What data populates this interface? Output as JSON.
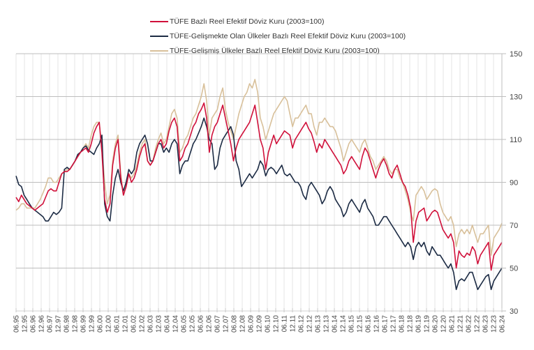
{
  "chart_data": {
    "type": "line",
    "title": "",
    "xlabel": "",
    "ylabel": "",
    "ylim": [
      30,
      150
    ],
    "yticks": [
      30,
      50,
      70,
      90,
      110,
      130,
      150
    ],
    "y_axis_side": "right",
    "grid": "on",
    "legend_placement": "top-center",
    "x_tick_labels": [
      "06.95",
      "12.95",
      "06.96",
      "12.96",
      "06.97",
      "12.97",
      "06.98",
      "12.98",
      "06.99",
      "12.99",
      "06.00",
      "12.00",
      "06.01",
      "12.01",
      "06.02",
      "12.02",
      "06.03",
      "12.03",
      "06.04",
      "12.04",
      "06.05",
      "12.05",
      "06.06",
      "12.06",
      "06.07",
      "12.07",
      "06.08",
      "12.08",
      "06.09",
      "12.09",
      "06.10",
      "12.10",
      "06.11",
      "12.11",
      "06.12",
      "12.12",
      "06.13",
      "12.13",
      "06.14",
      "12.14",
      "06.15",
      "12.15",
      "06.16",
      "12.16",
      "06.17",
      "12.17",
      "06.18",
      "12.18",
      "06.19",
      "12.19",
      "06.20",
      "12.20",
      "06.21",
      "12.21",
      "06.22",
      "12.22",
      "06.23",
      "12.23",
      "06.24"
    ],
    "series": [
      {
        "name": "TÜFE  Bazlı Reel Efektif Döviz Kuru (2003=100)",
        "color": "#D0103A",
        "values": [
          83,
          81,
          84,
          82,
          80,
          79,
          78,
          77,
          78,
          79,
          80,
          83,
          86,
          87,
          86,
          86,
          90,
          94,
          95,
          95,
          96,
          98,
          100,
          102,
          104,
          105,
          106,
          104,
          108,
          113,
          116,
          118,
          104,
          82,
          76,
          80,
          98,
          106,
          110,
          92,
          84,
          88,
          94,
          90,
          92,
          96,
          102,
          106,
          108,
          100,
          98,
          100,
          104,
          108,
          110,
          106,
          108,
          114,
          118,
          120,
          116,
          100,
          102,
          106,
          108,
          112,
          116,
          118,
          122,
          124,
          127,
          120,
          104,
          112,
          116,
          118,
          122,
          126,
          120,
          114,
          108,
          100,
          106,
          110,
          112,
          114,
          116,
          118,
          122,
          126,
          118,
          110,
          106,
          96,
          104,
          108,
          112,
          108,
          110,
          112,
          114,
          113,
          112,
          106,
          110,
          112,
          114,
          116,
          118,
          115,
          113,
          109,
          104,
          108,
          106,
          110,
          108,
          106,
          104,
          102,
          100,
          98,
          94,
          96,
          100,
          102,
          100,
          98,
          96,
          102,
          106,
          104,
          100,
          96,
          92,
          96,
          99,
          101,
          98,
          94,
          92,
          96,
          98,
          94,
          90,
          88,
          84,
          78,
          62,
          72,
          76,
          77,
          78,
          72,
          74,
          76,
          77,
          76,
          72,
          68,
          66,
          64,
          66,
          62,
          50,
          58,
          56,
          55,
          57,
          56,
          60,
          58,
          52,
          56,
          58,
          60,
          62,
          49,
          56,
          58,
          60,
          62
        ]
      },
      {
        "name": "TÜFE-Gelişmekte Olan Ülkeler Bazlı Reel Efektif Döviz Kuru (2003=100)",
        "color": "#1C2B44",
        "values": [
          93,
          89,
          88,
          84,
          82,
          80,
          78,
          77,
          76,
          75,
          74,
          72,
          72,
          74,
          76,
          75,
          76,
          78,
          96,
          97,
          96,
          98,
          100,
          103,
          104,
          106,
          107,
          105,
          104,
          103,
          106,
          108,
          112,
          80,
          74,
          72,
          84,
          92,
          96,
          90,
          86,
          90,
          96,
          94,
          96,
          104,
          108,
          110,
          112,
          108,
          100,
          100,
          104,
          108,
          108,
          104,
          106,
          104,
          108,
          110,
          108,
          94,
          98,
          100,
          100,
          104,
          108,
          110,
          113,
          116,
          120,
          116,
          110,
          108,
          96,
          98,
          106,
          110,
          112,
          114,
          116,
          112,
          100,
          96,
          88,
          90,
          92,
          94,
          92,
          94,
          96,
          100,
          98,
          93,
          96,
          97,
          96,
          94,
          96,
          98,
          94,
          93,
          94,
          92,
          90,
          90,
          88,
          84,
          82,
          88,
          90,
          88,
          86,
          84,
          80,
          82,
          86,
          88,
          86,
          82,
          80,
          78,
          74,
          76,
          80,
          82,
          80,
          78,
          76,
          80,
          82,
          78,
          76,
          74,
          70,
          70,
          72,
          74,
          74,
          72,
          70,
          68,
          66,
          64,
          62,
          60,
          62,
          60,
          54,
          60,
          62,
          60,
          62,
          58,
          56,
          60,
          58,
          56,
          56,
          54,
          52,
          50,
          52,
          48,
          40,
          44,
          45,
          44,
          46,
          48,
          48,
          44,
          40,
          42,
          44,
          46,
          47,
          40,
          44,
          46,
          48,
          50
        ]
      },
      {
        "name": "TÜFE-Gelişmiş Ülkeler Bazlı Reel Efektif Döviz Kuru (2003=100)",
        "color": "#D8C09A",
        "values": [
          77,
          78,
          80,
          80,
          78,
          78,
          78,
          78,
          80,
          82,
          85,
          88,
          92,
          92,
          90,
          90,
          92,
          94,
          95,
          96,
          96,
          98,
          100,
          102,
          104,
          106,
          108,
          106,
          112,
          116,
          118,
          118,
          106,
          90,
          80,
          84,
          100,
          108,
          112,
          94,
          84,
          88,
          94,
          92,
          94,
          98,
          104,
          108,
          110,
          100,
          98,
          100,
          106,
          110,
          113,
          108,
          110,
          116,
          122,
          124,
          120,
          104,
          106,
          110,
          112,
          116,
          120,
          122,
          126,
          130,
          136,
          128,
          112,
          120,
          122,
          124,
          130,
          134,
          124,
          118,
          114,
          110,
          116,
          122,
          126,
          130,
          132,
          136,
          134,
          138,
          132,
          120,
          116,
          110,
          114,
          118,
          122,
          124,
          126,
          128,
          130,
          128,
          122,
          116,
          120,
          120,
          122,
          124,
          126,
          122,
          122,
          116,
          112,
          118,
          118,
          120,
          118,
          116,
          116,
          114,
          110,
          106,
          100,
          104,
          108,
          110,
          108,
          106,
          104,
          108,
          110,
          106,
          102,
          100,
          96,
          98,
          100,
          102,
          100,
          96,
          94,
          96,
          96,
          92,
          90,
          86,
          82,
          76,
          72,
          84,
          86,
          88,
          86,
          82,
          84,
          86,
          87,
          86,
          80,
          76,
          74,
          72,
          74,
          70,
          60,
          66,
          68,
          66,
          68,
          66,
          70,
          66,
          62,
          66,
          66,
          68,
          70,
          56,
          64,
          66,
          68,
          71
        ]
      }
    ]
  },
  "legend": {
    "items": [
      {
        "label": "TÜFE  Bazlı Reel Efektif Döviz Kuru (2003=100)",
        "color": "#D0103A"
      },
      {
        "label": "TÜFE-Gelişmekte Olan Ülkeler Bazlı Reel Efektif Döviz Kuru (2003=100)",
        "color": "#1C2B44"
      },
      {
        "label": "TÜFE-Gelişmiş Ülkeler Bazlı Reel Efektif Döviz Kuru (2003=100)",
        "color": "#D8C09A"
      }
    ]
  }
}
